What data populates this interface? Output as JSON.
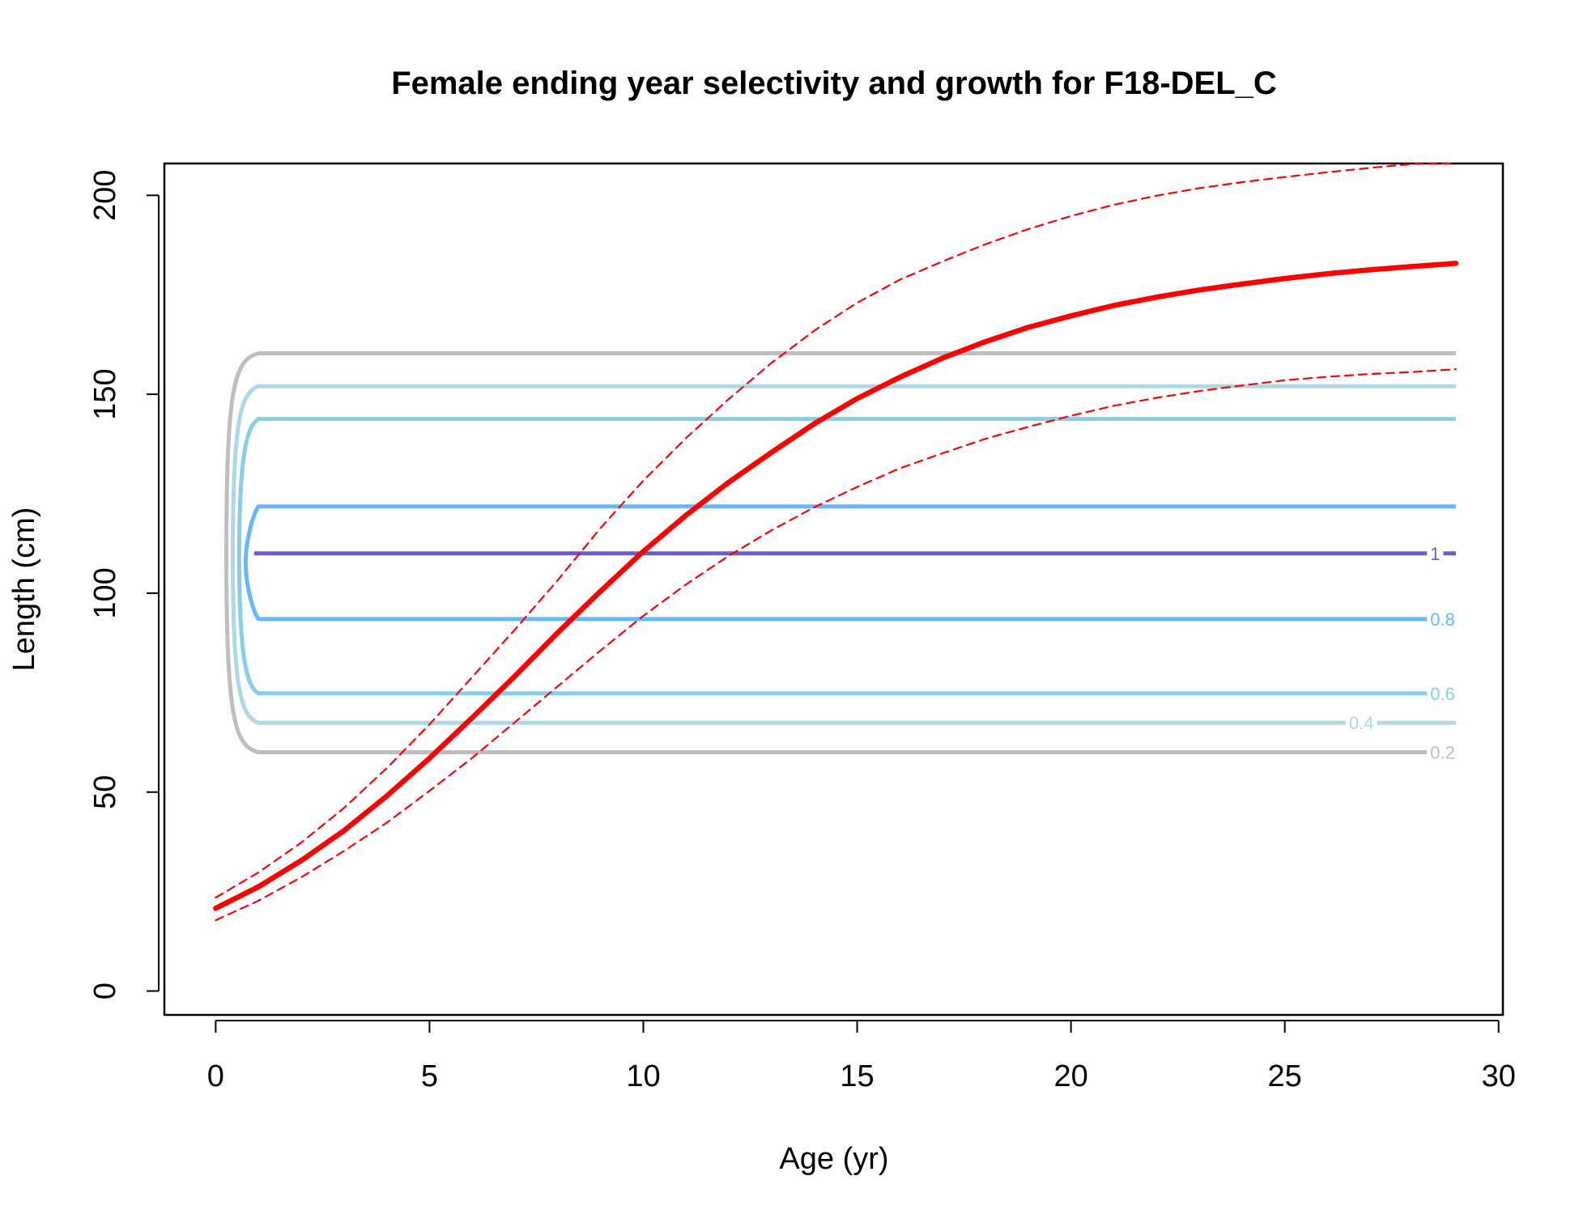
{
  "chart_data": {
    "type": "line",
    "title": "Female ending year selectivity and growth for F18-DEL_C",
    "xlabel": "Age (yr)",
    "ylabel": "Length (cm)",
    "xlim": [
      -1.2,
      30.1
    ],
    "ylim": [
      -6,
      208
    ],
    "x_ticks": [
      "0",
      "5",
      "10",
      "15",
      "20",
      "25",
      "30"
    ],
    "y_ticks": [
      "0",
      "50",
      "100",
      "150",
      "200"
    ],
    "grid": false,
    "legend": "none",
    "series": [
      {
        "role": "mean length at age",
        "style": "solid-thick",
        "color": "#ff0000",
        "x": [
          0,
          1,
          2,
          3,
          4,
          5,
          6,
          7,
          8,
          9,
          10,
          11,
          12,
          13,
          14,
          15,
          16,
          17,
          18,
          19,
          20,
          21,
          22,
          23,
          24,
          25,
          26,
          27,
          28,
          29
        ],
        "y": [
          20.8,
          26.2,
          32.8,
          40.3,
          49.0,
          58.5,
          68.7,
          79.2,
          90.1,
          100.5,
          110.5,
          119.6,
          127.9,
          135.4,
          142.6,
          148.9,
          154.3,
          159.1,
          163.2,
          166.8,
          169.7,
          172.3,
          174.4,
          176.2,
          177.7,
          179.1,
          180.3,
          181.3,
          182.1,
          182.9
        ]
      },
      {
        "role": "upper interval",
        "style": "dashed",
        "color": "#ff0000",
        "x": [
          0,
          1,
          2,
          3,
          4,
          5,
          6,
          7,
          8,
          9,
          10,
          11,
          12,
          13,
          14,
          15,
          16,
          17,
          18,
          19,
          20,
          21,
          22,
          23,
          24,
          25,
          26,
          27,
          28,
          29
        ],
        "y": [
          23.5,
          29.8,
          37.3,
          46.0,
          56.0,
          67.0,
          78.9,
          90.9,
          103.3,
          116.4,
          128.3,
          139.0,
          148.8,
          157.9,
          166.0,
          173.0,
          178.8,
          183.4,
          187.7,
          191.5,
          194.8,
          197.6,
          199.9,
          201.8,
          203.3,
          204.6,
          205.8,
          206.9,
          207.9,
          208.0
        ]
      },
      {
        "role": "lower interval",
        "style": "dashed",
        "color": "#ff0000",
        "x": [
          0,
          1,
          2,
          3,
          4,
          5,
          6,
          7,
          8,
          9,
          10,
          11,
          12,
          13,
          14,
          15,
          16,
          17,
          18,
          19,
          20,
          21,
          22,
          23,
          24,
          25,
          26,
          27,
          28,
          29
        ],
        "y": [
          17.8,
          22.7,
          28.6,
          35.2,
          42.3,
          50.3,
          58.6,
          67.6,
          76.6,
          85.6,
          94.3,
          102.2,
          109.4,
          115.8,
          121.6,
          126.7,
          131.4,
          135.2,
          138.8,
          141.8,
          144.6,
          147.1,
          149.1,
          150.8,
          152.2,
          153.5,
          154.4,
          155.1,
          155.6,
          156.3
        ]
      }
    ],
    "contours": [
      {
        "level_label": "0.2",
        "color": "#bebebe",
        "lower": 60.0,
        "upper": 160.3
      },
      {
        "level_label": "0.4",
        "color": "#add8e6",
        "lower": 67.4,
        "upper": 152.0
      },
      {
        "level_label": "0.6",
        "color": "#87ceeb",
        "lower": 74.8,
        "upper": 143.8
      },
      {
        "level_label": "0.8",
        "color": "#63b8ff",
        "lower": 93.5,
        "upper": 121.8
      },
      {
        "level_label": "1",
        "color": "#6a5acd",
        "lower": 110.0,
        "upper": 110.0
      }
    ]
  }
}
